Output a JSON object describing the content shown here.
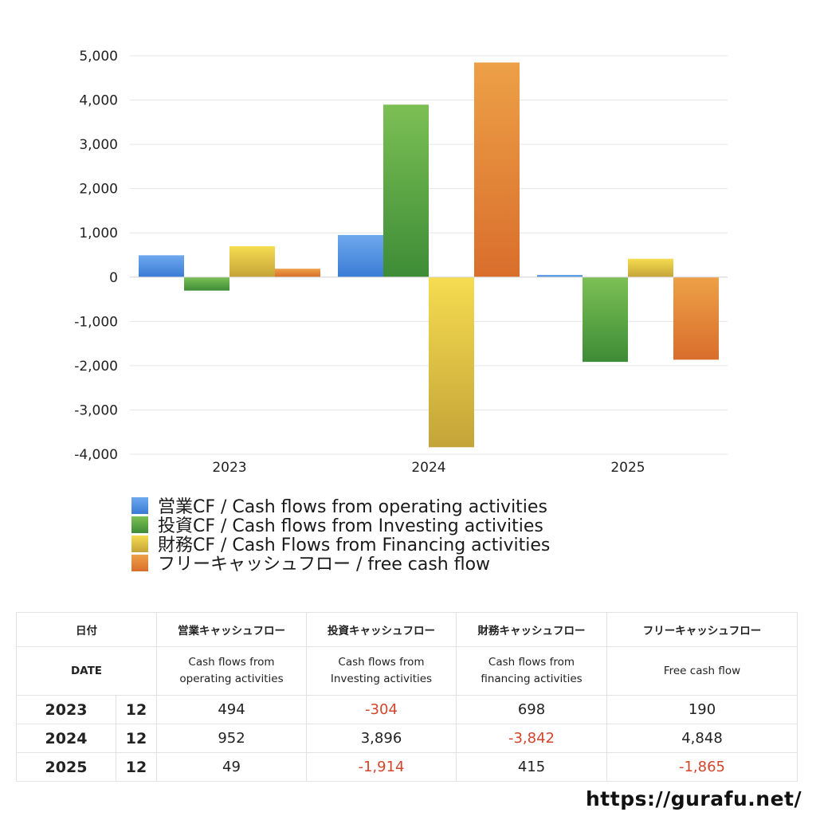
{
  "chart_data": {
    "type": "bar",
    "categories": [
      "2023",
      "2024",
      "2025"
    ],
    "series": [
      {
        "name": "営業CF / Cash flows from operating activities",
        "values": [
          494,
          952,
          49
        ],
        "color": "#3a7bd5",
        "color_light": "#6ea8ee"
      },
      {
        "name": "投資CF / Cash flows from Investing activities",
        "values": [
          -304,
          3896,
          -1914
        ],
        "color": "#3d8c36",
        "color_light": "#7cc055"
      },
      {
        "name": "財務CF / Cash Flows from Financing activities",
        "values": [
          698,
          -3842,
          415
        ],
        "color": "#c4a438",
        "color_light": "#f5dc50"
      },
      {
        "name": "フリーキャッシュフロー / free cash flow",
        "values": [
          190,
          4848,
          -1865
        ],
        "color": "#d96e2c",
        "color_light": "#eda047"
      }
    ],
    "ylim": [
      -4000,
      5000
    ],
    "yticks": [
      "5,000",
      "4,000",
      "3,000",
      "2,000",
      "1,000",
      "0",
      "-1,000",
      "-2,000",
      "-3,000",
      "-4,000"
    ],
    "grid": true,
    "legend_position": "bottom-left"
  },
  "table": {
    "header1": [
      "日付",
      "営業キャッシュフロー",
      "投資キャッシュフロー",
      "財務キャッシュフロー",
      "フリーキャッシュフロー"
    ],
    "header2": {
      "date": "DATE",
      "op_1": "Cash flows from",
      "op_2": "operating activities",
      "inv_1": "Cash flows from",
      "inv_2": "Investing activities",
      "fin_1": "Cash flows from",
      "fin_2": "financing activities",
      "fcf": "Free cash flow"
    },
    "rows": [
      {
        "year": "2023",
        "month": "12",
        "op": "494",
        "inv": "-304",
        "fin": "698",
        "fcf": "190"
      },
      {
        "year": "2024",
        "month": "12",
        "op": "952",
        "inv": "3,896",
        "fin": "-3,842",
        "fcf": "4,848"
      },
      {
        "year": "2025",
        "month": "12",
        "op": "49",
        "inv": "-1,914",
        "fin": "415",
        "fcf": "-1,865"
      }
    ]
  },
  "site": "https://gurafu.net/"
}
